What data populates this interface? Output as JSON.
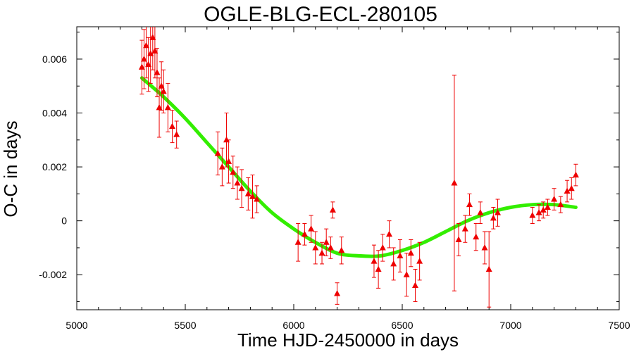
{
  "chart_data": {
    "type": "scatter",
    "title": "OGLE-BLG-ECL-280105",
    "xlabel": "Time HJD-2450000 in days",
    "ylabel": "O-C in days",
    "xlim": [
      5000,
      7500
    ],
    "ylim": [
      -0.0033,
      0.0072
    ],
    "xticks": [
      "5000",
      "5500",
      "6000",
      "6500",
      "7000",
      "7500"
    ],
    "yticks": [
      "-0.002",
      "0",
      "0.002",
      "0.004",
      "0.006"
    ],
    "grid": false,
    "colors": {
      "points": "#ee0000",
      "fit": "#33ee00"
    },
    "series": [
      {
        "kind": "points_with_errorbars",
        "x": [
          5300,
          5310,
          5320,
          5330,
          5340,
          5350,
          5360,
          5370,
          5380,
          5390,
          5400,
          5420,
          5440,
          5460,
          5650,
          5670,
          5690,
          5700,
          5720,
          5740,
          5760,
          5790,
          5810,
          5830,
          6020,
          6050,
          6080,
          6100,
          6130,
          6150,
          6170,
          6180,
          6200,
          6220,
          6370,
          6390,
          6410,
          6440,
          6460,
          6490,
          6520,
          6540,
          6560,
          6580,
          6740,
          6760,
          6790,
          6810,
          6840,
          6860,
          6880,
          6900,
          6920,
          6940,
          7100,
          7130,
          7150,
          7170,
          7200,
          7230,
          7260,
          7280,
          7300
        ],
        "y": [
          0.0057,
          0.006,
          0.0065,
          0.0058,
          0.0062,
          0.0068,
          0.0063,
          0.0055,
          0.0042,
          0.005,
          0.0048,
          0.0042,
          0.0035,
          0.0032,
          0.0025,
          0.002,
          0.003,
          0.0022,
          0.0018,
          0.0014,
          0.0012,
          0.001,
          0.0009,
          0.0008,
          -0.0008,
          -0.0005,
          -0.0003,
          -0.001,
          -0.0012,
          -0.0008,
          -0.001,
          0.0004,
          -0.0027,
          -0.0011,
          -0.0015,
          -0.0018,
          -0.001,
          -0.0005,
          -0.0016,
          -0.0013,
          -0.002,
          -0.0012,
          -0.0024,
          -0.0015,
          0.0014,
          -0.0007,
          -0.0003,
          0.0006,
          -0.0006,
          0.0003,
          -0.001,
          -0.0018,
          0.0001,
          0.0003,
          0.0002,
          0.0003,
          0.0004,
          0.0005,
          0.0008,
          0.0006,
          0.0011,
          0.0012,
          0.0017
        ],
        "err": [
          0.001,
          0.0011,
          0.0012,
          0.001,
          0.0011,
          0.0012,
          0.001,
          0.0009,
          0.0011,
          0.0009,
          0.0008,
          0.0009,
          0.0006,
          0.0005,
          0.0008,
          0.0007,
          0.001,
          0.0008,
          0.0006,
          0.0006,
          0.0007,
          0.0006,
          0.0008,
          0.0005,
          0.0007,
          0.0004,
          0.0005,
          0.0006,
          0.0004,
          0.0005,
          0.0004,
          0.0003,
          0.0004,
          0.0005,
          0.0006,
          0.0007,
          0.0005,
          0.0005,
          0.0006,
          0.0006,
          0.0008,
          0.0005,
          0.0006,
          0.0007,
          0.004,
          0.0006,
          0.0005,
          0.0004,
          0.0005,
          0.0004,
          0.0006,
          0.0014,
          0.0004,
          0.0005,
          0.0003,
          0.0003,
          0.0003,
          0.0003,
          0.0004,
          0.0003,
          0.0004,
          0.0004,
          0.0004
        ]
      },
      {
        "kind": "fit_curve",
        "x": [
          5300,
          5400,
          5500,
          5600,
          5700,
          5800,
          5900,
          6000,
          6100,
          6200,
          6300,
          6400,
          6500,
          6600,
          6700,
          6800,
          6900,
          7000,
          7100,
          7200,
          7300
        ],
        "y": [
          0.0053,
          0.0046,
          0.0038,
          0.0029,
          0.002,
          0.0011,
          0.0003,
          -0.0003,
          -0.0008,
          -0.0012,
          -0.0013,
          -0.0013,
          -0.0011,
          -0.0008,
          -0.0004,
          0.0,
          0.0003,
          0.0005,
          0.0006,
          0.0006,
          0.0005
        ]
      }
    ]
  }
}
